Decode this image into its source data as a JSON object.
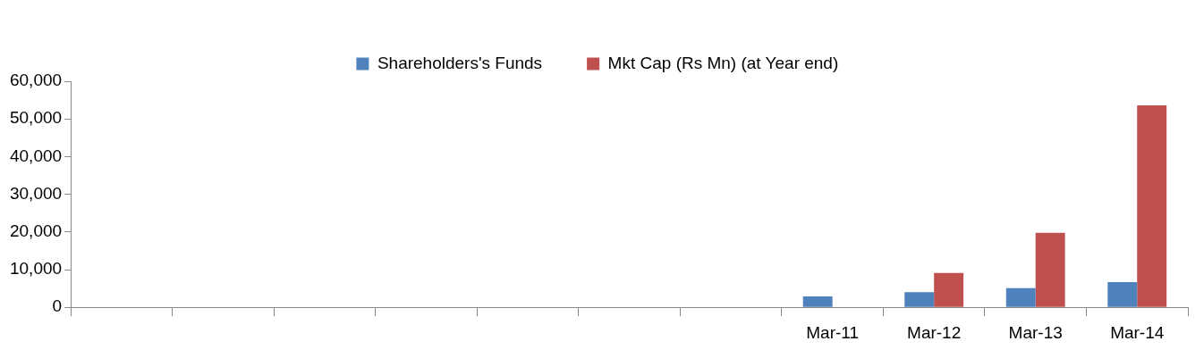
{
  "chart_data": {
    "type": "bar",
    "categories": [
      null,
      null,
      null,
      null,
      null,
      null,
      null,
      "Mar-11",
      "Mar-12",
      "Mar-13",
      "Mar-14"
    ],
    "series": [
      {
        "name": "Shareholders's Funds",
        "color": "#4f81bd",
        "values": [
          null,
          null,
          null,
          null,
          null,
          null,
          null,
          2900,
          4000,
          5100,
          6700
        ]
      },
      {
        "name": "Mkt Cap (Rs Mn) (at Year end)",
        "color": "#c0504d",
        "values": [
          null,
          null,
          null,
          null,
          null,
          null,
          null,
          null,
          9100,
          19750,
          53600
        ]
      }
    ],
    "ylim": [
      0,
      60000
    ],
    "yticks": [
      {
        "value": 0,
        "label": "0"
      },
      {
        "value": 10000,
        "label": "10,000"
      },
      {
        "value": 20000,
        "label": "20,000"
      },
      {
        "value": 30000,
        "label": "30,000"
      },
      {
        "value": 40000,
        "label": "40,000"
      },
      {
        "value": 50000,
        "label": "50,000"
      },
      {
        "value": 60000,
        "label": "60,000"
      }
    ],
    "grid": false,
    "legend": "top"
  }
}
